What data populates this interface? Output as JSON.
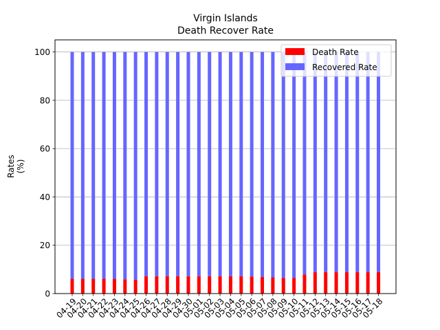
{
  "chart_data": {
    "type": "bar",
    "stacked": true,
    "title_lines": [
      "Virgin Islands",
      "Death Recover Rate"
    ],
    "ylabel_lines": [
      "Rates",
      "(%)"
    ],
    "xlabel": "",
    "ylim": [
      0,
      105
    ],
    "yticks": [
      0,
      20,
      40,
      60,
      80,
      100
    ],
    "grid": "y",
    "legend_position": "upper-right",
    "categories": [
      "04-19",
      "04-20",
      "04-21",
      "04-22",
      "04-23",
      "04-24",
      "04-25",
      "04-26",
      "04-27",
      "04-28",
      "04-29",
      "04-30",
      "05-01",
      "05-02",
      "05-03",
      "05-04",
      "05-05",
      "05-06",
      "05-07",
      "05-08",
      "05-09",
      "05-10",
      "05-11",
      "05-12",
      "05-13",
      "05-14",
      "05-15",
      "05-16",
      "05-17",
      "05-18"
    ],
    "series": [
      {
        "name": "Death Rate",
        "color": "#ff0000",
        "values": [
          6.1,
          6.1,
          6.1,
          6.1,
          6.1,
          5.9,
          5.7,
          7.2,
          7.2,
          7.2,
          7.2,
          7.2,
          7.2,
          7.2,
          7.2,
          7.2,
          7.2,
          7.0,
          6.9,
          6.7,
          6.5,
          6.5,
          7.9,
          8.9,
          8.9,
          8.9,
          8.9,
          8.9,
          8.9,
          8.9
        ]
      },
      {
        "name": "Recovered Rate",
        "color": "#6666ff",
        "values": [
          93.9,
          93.9,
          93.9,
          93.9,
          93.9,
          94.1,
          94.3,
          92.8,
          92.8,
          92.8,
          92.8,
          92.8,
          92.8,
          92.8,
          92.8,
          92.8,
          92.8,
          93.0,
          93.1,
          93.3,
          93.5,
          93.5,
          92.1,
          91.1,
          91.1,
          91.1,
          91.1,
          91.1,
          91.1,
          91.1
        ]
      }
    ]
  }
}
